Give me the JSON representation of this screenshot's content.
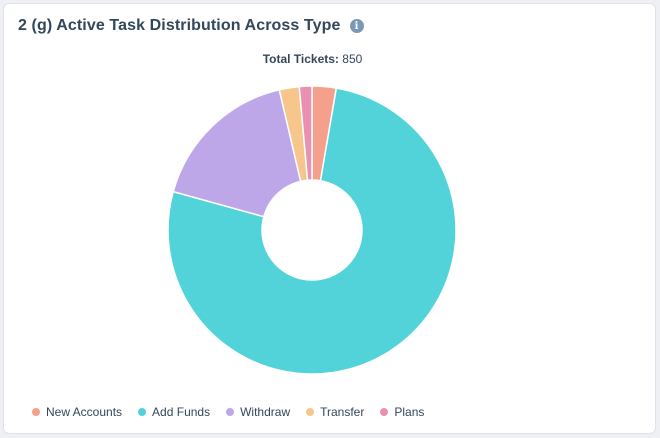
{
  "card": {
    "title": "2 (g) Active Task Distribution Across Type",
    "info_icon": "info-icon",
    "info_glyph": "i"
  },
  "total": {
    "label": "Total Tickets:",
    "value": "850"
  },
  "chart_data": {
    "type": "pie",
    "donut": true,
    "total": 850,
    "legend_position": "bottom-left",
    "slices": [
      {
        "label": "New Accounts",
        "value": 23,
        "color": "#f5a08c"
      },
      {
        "label": "Add Funds",
        "value": 651,
        "color": "#51d3d9"
      },
      {
        "label": "Withdraw",
        "value": 145,
        "color": "#bea7e9"
      },
      {
        "label": "Transfer",
        "value": 19,
        "color": "#f6c68c"
      },
      {
        "label": "Plans",
        "value": 12,
        "color": "#ea90b1"
      }
    ]
  }
}
